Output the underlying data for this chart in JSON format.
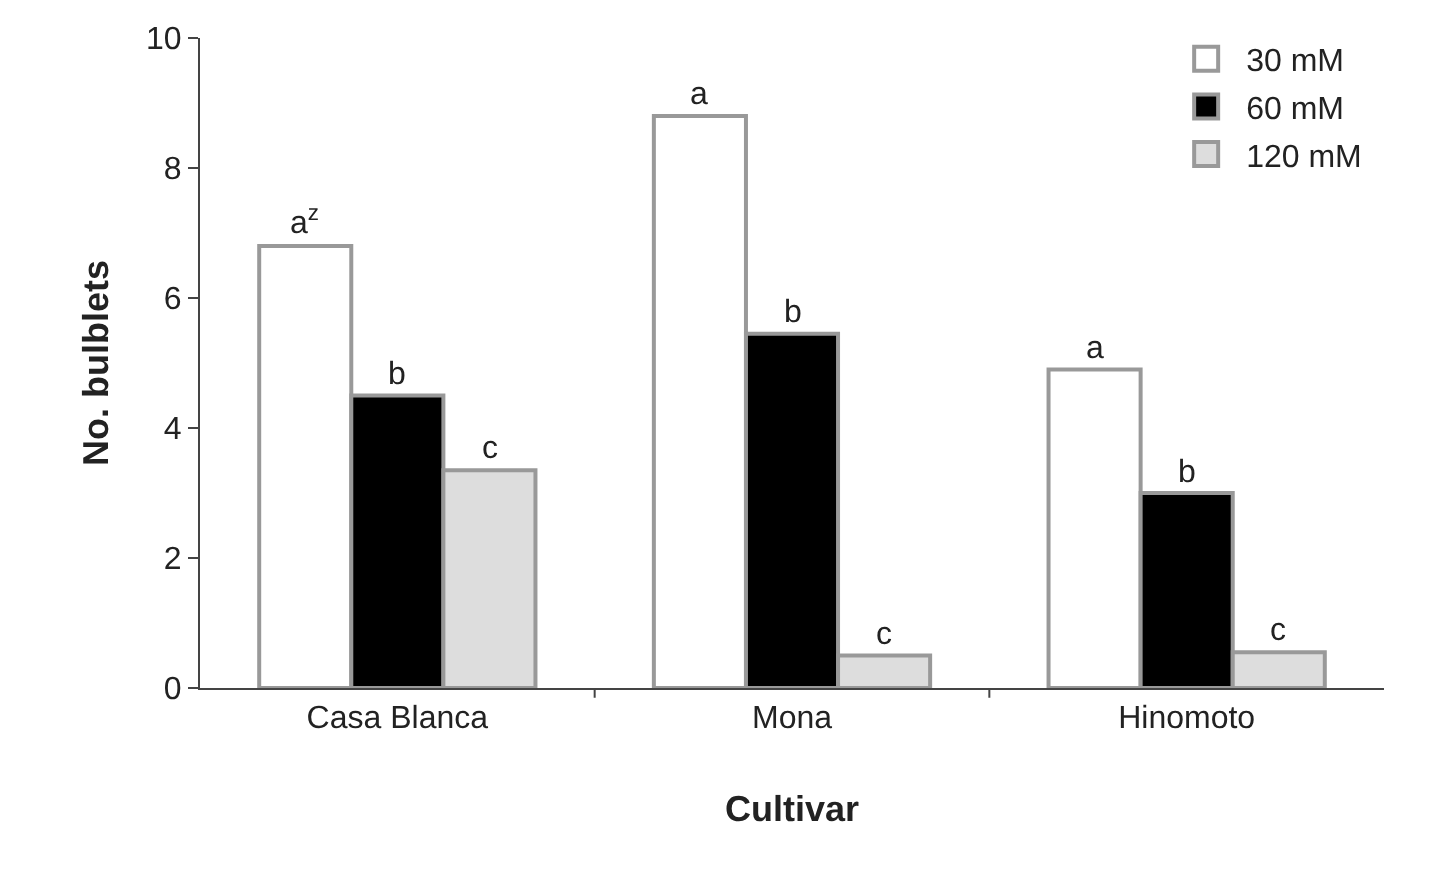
{
  "chart_data": {
    "type": "bar",
    "xlabel": "Cultivar",
    "ylabel": "No. bulblets",
    "categories": [
      "Casa Blanca",
      "Mona",
      "Hinomoto"
    ],
    "series": [
      {
        "name": "30 mM",
        "color": "#ffffff",
        "values": [
          6.8,
          8.8,
          4.9
        ]
      },
      {
        "name": "60 mM",
        "color": "#000000",
        "values": [
          4.5,
          5.45,
          3.0
        ]
      },
      {
        "name": "120 mM",
        "color": "#dddddd",
        "values": [
          3.35,
          0.5,
          0.55
        ]
      }
    ],
    "ylim": [
      0,
      10
    ],
    "yticks": [
      0,
      2,
      4,
      6,
      8,
      10
    ],
    "grid": false,
    "legend": "top right",
    "annotations": [
      "a$^{z}$",
      "b",
      "c",
      "a",
      "b",
      "c",
      "a",
      "b",
      "c"
    ]
  }
}
